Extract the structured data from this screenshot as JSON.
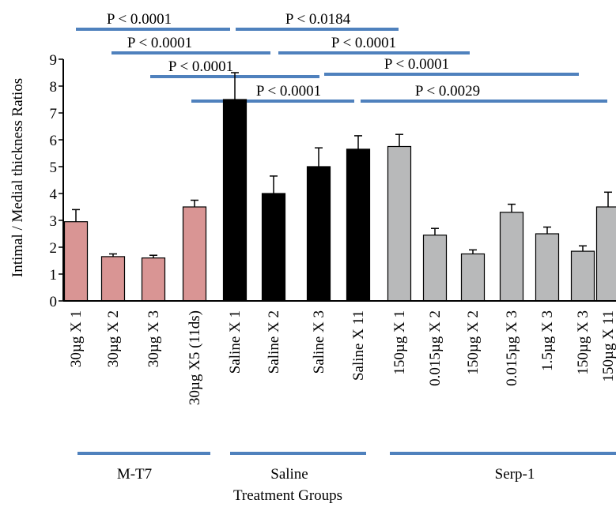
{
  "chart_data": {
    "type": "bar",
    "ylabel": "Intimal / Medial thickness Ratios",
    "xlabel": "Treatment Groups",
    "ylim": [
      0,
      9
    ],
    "yticks": [
      0,
      1,
      2,
      3,
      4,
      5,
      6,
      7,
      8,
      9
    ],
    "grid": false,
    "colors": {
      "M-T7": "#d99594",
      "Saline": "#000000",
      "Serp-1": "#b8b9ba",
      "bracket": "#4f81bd"
    },
    "categories": [
      "30µg X 1",
      "30µg X 2",
      "30µg X 3",
      "30µg X5 (11ds)",
      "Saline X 1",
      "Saline X 2",
      "Saline X 3",
      "Saline X 11",
      "150µg X 1",
      "0.015µg X 2",
      "150µg X 2",
      "0.015µg X 3",
      "1.5µg X 3",
      "150µg X 3",
      "150µg X 11"
    ],
    "groups": [
      "M-T7",
      "M-T7",
      "M-T7",
      "M-T7",
      "Saline",
      "Saline",
      "Saline",
      "Saline",
      "Serp-1",
      "Serp-1",
      "Serp-1",
      "Serp-1",
      "Serp-1",
      "Serp-1",
      "Serp-1"
    ],
    "values": [
      2.95,
      1.65,
      1.6,
      3.5,
      7.5,
      4.0,
      5.0,
      5.65,
      5.75,
      2.45,
      1.75,
      3.3,
      2.5,
      1.85,
      3.5
    ],
    "errors": [
      0.45,
      0.1,
      0.1,
      0.25,
      1.0,
      0.65,
      0.7,
      0.5,
      0.45,
      0.25,
      0.15,
      0.3,
      0.25,
      0.2,
      0.55
    ],
    "group_labels": [
      "M-T7",
      "Saline",
      "Serp-1"
    ],
    "comparisons": [
      {
        "label": "P < 0.0001"
      },
      {
        "label": "P < 0.0184"
      },
      {
        "label": "P < 0.0001"
      },
      {
        "label": "P < 0.0001"
      },
      {
        "label": "P < 0.0001"
      },
      {
        "label": "P < 0.0001"
      },
      {
        "label": "P < 0.0001"
      },
      {
        "label": "P < 0.0029"
      }
    ]
  }
}
